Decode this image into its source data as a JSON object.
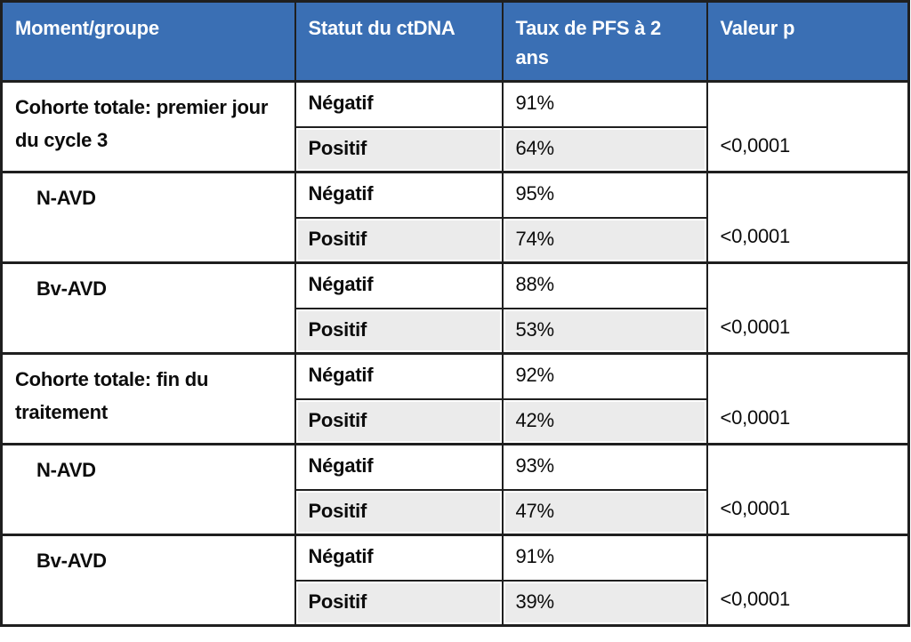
{
  "table": {
    "columns": [
      {
        "label": "Moment/groupe"
      },
      {
        "label": "Statut du ctDNA"
      },
      {
        "label": "Taux de PFS à 2 ans"
      },
      {
        "label": "Valeur p"
      }
    ],
    "groups": [
      {
        "label": "Cohorte totale: premier jour du cycle 3",
        "rows": [
          {
            "status": "Négatif",
            "pfs": "91%"
          },
          {
            "status": "Positif",
            "pfs": "64%"
          }
        ],
        "p_value": "<0,0001"
      },
      {
        "label": "N-AVD",
        "rows": [
          {
            "status": "Négatif",
            "pfs": "95%"
          },
          {
            "status": "Positif",
            "pfs": "74%"
          }
        ],
        "p_value": "<0,0001"
      },
      {
        "label": "Bv-AVD",
        "rows": [
          {
            "status": "Négatif",
            "pfs": "88%"
          },
          {
            "status": "Positif",
            "pfs": "53%"
          }
        ],
        "p_value": "<0,0001"
      },
      {
        "label": "Cohorte totale: fin du traitement",
        "rows": [
          {
            "status": "Négatif",
            "pfs": "92%"
          },
          {
            "status": "Positif",
            "pfs": "42%"
          }
        ],
        "p_value": "<0,0001"
      },
      {
        "label": "N-AVD",
        "rows": [
          {
            "status": "Négatif",
            "pfs": "93%"
          },
          {
            "status": "Positif",
            "pfs": "47%"
          }
        ],
        "p_value": "<0,0001"
      },
      {
        "label": "Bv-AVD",
        "rows": [
          {
            "status": "Négatif",
            "pfs": "91%"
          },
          {
            "status": "Positif",
            "pfs": "39%"
          }
        ],
        "p_value": "<0,0001"
      }
    ],
    "colors": {
      "header_bg": "#3A6FB4",
      "header_text": "#FFFFFF",
      "alt_row_bg": "#EBEBEB",
      "border": "#1F1F1F"
    }
  },
  "chart_data": {
    "type": "table",
    "columns": [
      "Moment/groupe",
      "Statut du ctDNA",
      "Taux de PFS à 2 ans",
      "Valeur p"
    ],
    "rows": [
      [
        "Cohorte totale: premier jour du cycle 3",
        "Négatif",
        "91%",
        "<0,0001"
      ],
      [
        "Cohorte totale: premier jour du cycle 3",
        "Positif",
        "64%",
        "<0,0001"
      ],
      [
        "N-AVD",
        "Négatif",
        "95%",
        "<0,0001"
      ],
      [
        "N-AVD",
        "Positif",
        "74%",
        "<0,0001"
      ],
      [
        "Bv-AVD",
        "Négatif",
        "88%",
        "<0,0001"
      ],
      [
        "Bv-AVD",
        "Positif",
        "53%",
        "<0,0001"
      ],
      [
        "Cohorte totale: fin du traitement",
        "Négatif",
        "92%",
        "<0,0001"
      ],
      [
        "Cohorte totale: fin du traitement",
        "Positif",
        "42%",
        "<0,0001"
      ],
      [
        "N-AVD",
        "Négatif",
        "93%",
        "<0,0001"
      ],
      [
        "N-AVD",
        "Positif",
        "47%",
        "<0,0001"
      ],
      [
        "Bv-AVD",
        "Négatif",
        "91%",
        "<0,0001"
      ],
      [
        "Bv-AVD",
        "Positif",
        "39%",
        "<0,0001"
      ]
    ],
    "layout_hints": {
      "header_background": "#3A6FB4",
      "alternating_sub_rows": true,
      "p_value_spans_status_rows": true,
      "indented_rows": [
        "N-AVD",
        "Bv-AVD"
      ]
    }
  }
}
